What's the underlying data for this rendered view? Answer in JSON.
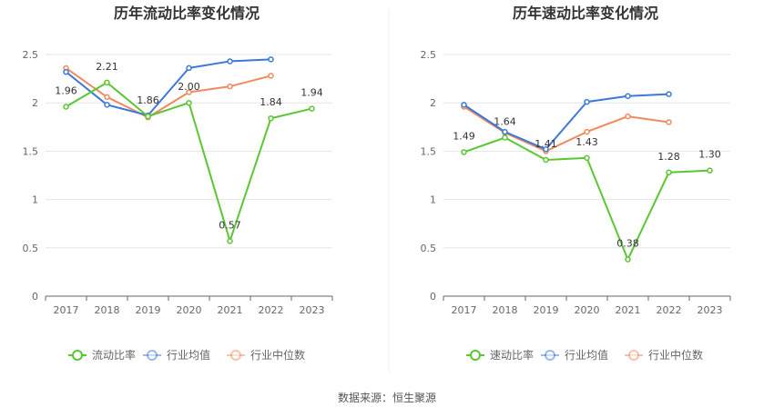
{
  "source_label": "数据来源：恒生聚源",
  "chart_data": [
    {
      "type": "line",
      "title": "历年流动比率变化情况",
      "categories": [
        "2017",
        "2018",
        "2019",
        "2020",
        "2021",
        "2022",
        "2023"
      ],
      "ylim": [
        0,
        2.5
      ],
      "yticks": [
        "0",
        "0.5",
        "1",
        "1.5",
        "2",
        "2.5"
      ],
      "grid": true,
      "legend_position": "bottom",
      "series": [
        {
          "name": "流动比率",
          "color": "#5ac732",
          "values": [
            1.96,
            2.21,
            1.86,
            2.0,
            0.57,
            1.84,
            1.94
          ],
          "labels": [
            "1.96",
            "2.21",
            "1.86",
            "2.00",
            "0.57",
            "1.84",
            "1.94"
          ]
        },
        {
          "name": "行业均值",
          "color": "#3b78d8",
          "values": [
            2.32,
            1.98,
            1.87,
            2.36,
            2.43,
            2.45,
            null
          ]
        },
        {
          "name": "行业中位数",
          "color": "#f08a5d",
          "values": [
            2.36,
            2.06,
            1.85,
            2.11,
            2.17,
            2.28,
            null
          ]
        }
      ]
    },
    {
      "type": "line",
      "title": "历年速动比率变化情况",
      "categories": [
        "2017",
        "2018",
        "2019",
        "2020",
        "2021",
        "2022",
        "2023"
      ],
      "ylim": [
        0,
        2.5
      ],
      "yticks": [
        "0",
        "0.5",
        "1",
        "1.5",
        "2",
        "2.5"
      ],
      "grid": true,
      "legend_position": "bottom",
      "series": [
        {
          "name": "速动比率",
          "color": "#5ac732",
          "values": [
            1.49,
            1.64,
            1.41,
            1.43,
            0.38,
            1.28,
            1.3
          ],
          "labels": [
            "1.49",
            "1.64",
            "1.41",
            "1.43",
            "0.38",
            "1.28",
            "1.30"
          ]
        },
        {
          "name": "行业均值",
          "color": "#3b78d8",
          "values": [
            1.98,
            1.7,
            1.52,
            2.01,
            2.07,
            2.09,
            null
          ]
        },
        {
          "name": "行业中位数",
          "color": "#f08a5d",
          "values": [
            1.96,
            1.69,
            1.5,
            1.7,
            1.86,
            1.8,
            null
          ]
        }
      ]
    }
  ]
}
